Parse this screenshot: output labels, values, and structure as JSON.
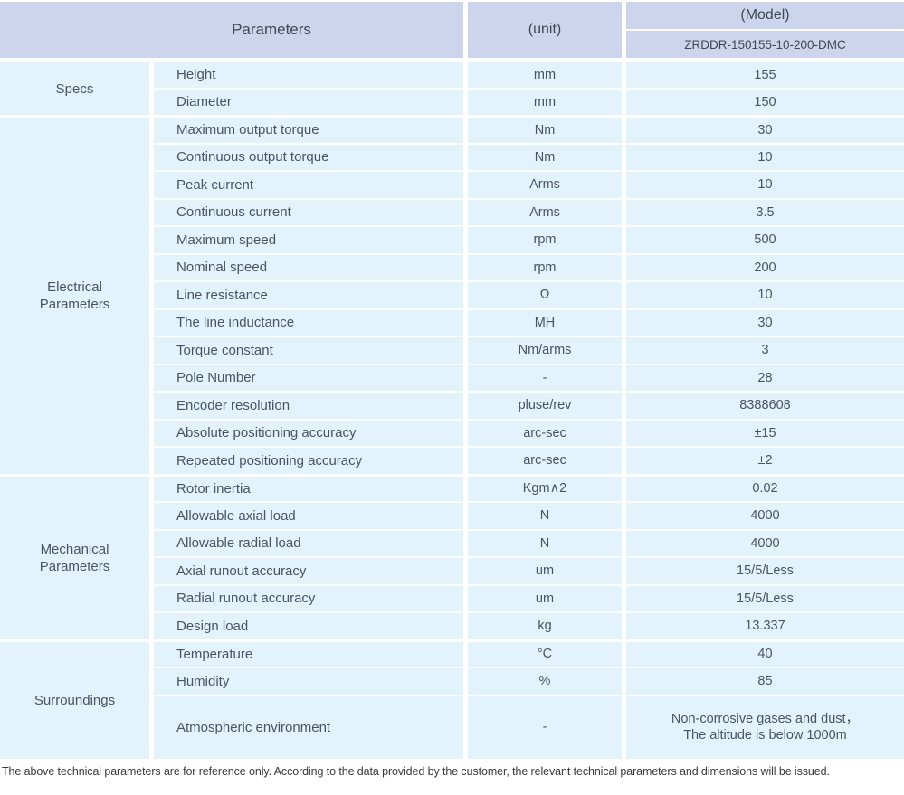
{
  "header": {
    "parameters_label": "Parameters",
    "unit_label": "(unit)",
    "model_label": "(Model)",
    "model_number": "ZRDDR-150155-10-200-DMC"
  },
  "groups": [
    {
      "name": "Specs",
      "rows": [
        {
          "param": "Height",
          "unit": "mm",
          "value": "155"
        },
        {
          "param": "Diameter",
          "unit": "mm",
          "value": "150"
        }
      ]
    },
    {
      "name": "Electrical Parameters",
      "rows": [
        {
          "param": "Maximum output torque",
          "unit": "Nm",
          "value": "30"
        },
        {
          "param": "Continuous output torque",
          "unit": "Nm",
          "value": "10"
        },
        {
          "param": "Peak current",
          "unit": "Arms",
          "value": "10"
        },
        {
          "param": "Continuous current",
          "unit": "Arms",
          "value": "3.5"
        },
        {
          "param": "Maximum speed",
          "unit": "rpm",
          "value": "500"
        },
        {
          "param": "Nominal speed",
          "unit": "rpm",
          "value": "200"
        },
        {
          "param": "Line resistance",
          "unit": "Ω",
          "value": "10"
        },
        {
          "param": "The line inductance",
          "unit": "MH",
          "value": "30"
        },
        {
          "param": "Torque constant",
          "unit": "Nm/arms",
          "value": "3"
        },
        {
          "param": "Pole Number",
          "unit": "-",
          "value": "28"
        },
        {
          "param": "Encoder resolution",
          "unit": "pluse/rev",
          "value": "8388608"
        },
        {
          "param": "Absolute positioning accuracy",
          "unit": "arc-sec",
          "value": "±15"
        },
        {
          "param": "Repeated positioning accuracy",
          "unit": "arc-sec",
          "value": "±2"
        }
      ]
    },
    {
      "name": "Mechanical Parameters",
      "rows": [
        {
          "param": "Rotor inertia",
          "unit": "Kgm∧2",
          "value": "0.02"
        },
        {
          "param": "Allowable axial load",
          "unit": "N",
          "value": "4000"
        },
        {
          "param": "Allowable radial load",
          "unit": "N",
          "value": "4000"
        },
        {
          "param": "Axial runout accuracy",
          "unit": "um",
          "value": "15/5/Less"
        },
        {
          "param": "Radial runout accuracy",
          "unit": "um",
          "value": "15/5/Less"
        },
        {
          "param": "Design load",
          "unit": "kg",
          "value": "13.337"
        }
      ]
    },
    {
      "name": "Surroundings",
      "rows": [
        {
          "param": "Temperature",
          "unit": "°C",
          "value": "40"
        },
        {
          "param": "Humidity",
          "unit": "%",
          "value": "85"
        },
        {
          "param": "Atmospheric environment",
          "unit": "-",
          "value": "Non-corrosive gases and dust，\nThe altitude is below 1000m",
          "tall": true
        }
      ]
    }
  ],
  "footer": {
    "note": "The above technical parameters are for reference only. According to the data provided by the customer, the relevant technical parameters and dimensions will be issued."
  },
  "colors": {
    "header_bg": "#ccd5ec",
    "body_bg": "#e3f3fb"
  }
}
